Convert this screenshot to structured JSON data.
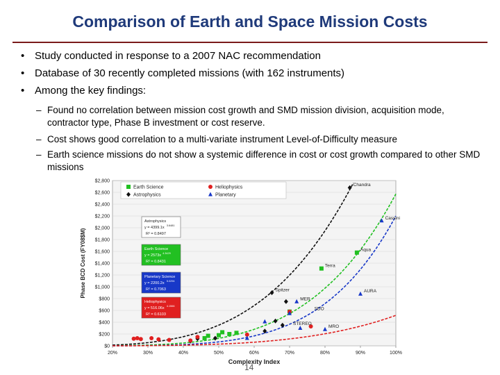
{
  "title": "Comparison of Earth and Space Mission Costs",
  "bullets": [
    "Study conducted in response to a 2007 NAC recommendation",
    "Database of 30 recently completed missions (with 162 instruments)",
    "Among the key findings:"
  ],
  "sub_bullets": [
    "Found no correlation between mission cost growth and SMD mission division, acquisition mode, contractor type, Phase B investment or cost reserve.",
    "Cost shows good correlation to a multi-variate instrument Level-of-Difficulty measure",
    "Earth science missions do not show a systemic difference in cost or cost growth compared to other SMD missions"
  ],
  "bullet_glyph": "•",
  "dash_glyph": "–",
  "slide_number": "14",
  "chart_data": {
    "type": "scatter",
    "title": "",
    "xlabel": "Complexity Index",
    "ylabel": "Phase BCD Cost (FY08$M)",
    "xlim": [
      0.2,
      1.0
    ],
    "ylim": [
      0,
      2800
    ],
    "x_ticks": [
      0.2,
      0.3,
      0.4,
      0.5,
      0.6,
      0.7,
      0.8,
      0.9,
      1.0
    ],
    "x_tick_labels": [
      "20%",
      "30%",
      "40%",
      "50%",
      "60%",
      "70%",
      "80%",
      "90%",
      "100%"
    ],
    "y_ticks": [
      0,
      200,
      400,
      600,
      800,
      1000,
      1200,
      1400,
      1600,
      1800,
      2000,
      2200,
      2400,
      2600,
      2800
    ],
    "y_tick_labels": [
      "$0",
      "$200",
      "$400",
      "$600",
      "$800",
      "$1,000",
      "$1,200",
      "$1,400",
      "$1,600",
      "$1,800",
      "$2,000",
      "$2,200",
      "$2,400",
      "$2,600",
      "$2,800"
    ],
    "legend": [
      "Earth Science",
      "Astrophysics",
      "Heliophysics",
      "Planetary"
    ],
    "series": [
      {
        "name": "Earth Science",
        "color": "#22c022",
        "marker": "square",
        "points": [
          [
            0.46,
            130
          ],
          [
            0.47,
            170
          ],
          [
            0.5,
            180
          ],
          [
            0.51,
            230
          ],
          [
            0.53,
            200
          ],
          [
            0.55,
            220
          ],
          [
            0.7,
            580
          ],
          [
            0.79,
            1310
          ],
          [
            0.89,
            1580
          ]
        ]
      },
      {
        "name": "Astrophysics",
        "color": "#111111",
        "marker": "diamond",
        "points": [
          [
            0.42,
            80
          ],
          [
            0.44,
            120
          ],
          [
            0.49,
            130
          ],
          [
            0.63,
            250
          ],
          [
            0.65,
            900
          ],
          [
            0.66,
            420
          ],
          [
            0.68,
            350
          ],
          [
            0.69,
            750
          ],
          [
            0.87,
            2680
          ]
        ]
      },
      {
        "name": "Heliophysics",
        "color": "#e02020",
        "marker": "circle",
        "points": [
          [
            0.26,
            120
          ],
          [
            0.27,
            130
          ],
          [
            0.28,
            115
          ],
          [
            0.31,
            130
          ],
          [
            0.33,
            110
          ],
          [
            0.36,
            100
          ],
          [
            0.42,
            90
          ],
          [
            0.44,
            150
          ],
          [
            0.58,
            190
          ],
          [
            0.7,
            580
          ],
          [
            0.76,
            330
          ]
        ]
      },
      {
        "name": "Planetary",
        "color": "#1838c8",
        "marker": "triangle",
        "points": [
          [
            0.58,
            130
          ],
          [
            0.63,
            410
          ],
          [
            0.7,
            550
          ],
          [
            0.72,
            750
          ],
          [
            0.73,
            300
          ],
          [
            0.8,
            280
          ],
          [
            0.9,
            880
          ],
          [
            0.96,
            2120
          ]
        ]
      }
    ],
    "trend_lines": [
      {
        "name": "Astrophysics",
        "color": "#111111",
        "coef": 4399.1,
        "exp": 3.6481
      },
      {
        "name": "Earth Science",
        "color": "#22c022",
        "coef": 2573,
        "exp": 4.3429
      },
      {
        "name": "Planetary Science",
        "color": "#1838c8",
        "coef": 2200.2,
        "exp": 5.0294
      },
      {
        "name": "Heliophysics",
        "color": "#e02020",
        "coef": 516.06,
        "exp": 4.1566
      }
    ],
    "equation_boxes": [
      {
        "name": "Astrophysics",
        "eq": "y = 4399.1x",
        "exp": "3.6481",
        "r2": "R² = 0.8497",
        "bg": "#ffffff",
        "fg": "#222222"
      },
      {
        "name": "Earth Science",
        "eq": "y = 2573x",
        "exp": "4.3429",
        "r2": "R² = 0.8431",
        "bg": "#22c022",
        "fg": "#ffffff"
      },
      {
        "name": "Planetary Science",
        "eq": "y = 2200.2x",
        "exp": "5.0294",
        "r2": "R² = 0.7063",
        "bg": "#1838c8",
        "fg": "#ffffff"
      },
      {
        "name": "Heliophysics",
        "eq": "y = 516.06x",
        "exp": "4.1566",
        "r2": "R² = 0.6103",
        "bg": "#e02020",
        "fg": "#ffffff"
      }
    ],
    "annotations": [
      {
        "text": "Chandra",
        "x": 0.87,
        "y": 2680
      },
      {
        "text": "Cassini",
        "x": 0.96,
        "y": 2120
      },
      {
        "text": "Terra",
        "x": 0.79,
        "y": 1310
      },
      {
        "text": "Aqua",
        "x": 0.89,
        "y": 1580
      },
      {
        "text": "AURA",
        "x": 0.9,
        "y": 880
      },
      {
        "text": "Spitzer",
        "x": 0.65,
        "y": 900
      },
      {
        "text": "MER",
        "x": 0.72,
        "y": 750
      },
      {
        "text": "SDO",
        "x": 0.76,
        "y": 580
      },
      {
        "text": "MRO",
        "x": 0.8,
        "y": 280
      },
      {
        "text": "STEREO",
        "x": 0.7,
        "y": 330
      }
    ]
  }
}
